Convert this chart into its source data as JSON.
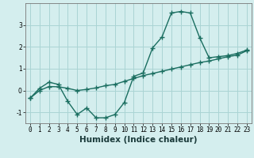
{
  "xlabel": "Humidex (Indice chaleur)",
  "ylabel": "",
  "bg_color": "#d4eeee",
  "grid_color": "#aad4d4",
  "line_color": "#1a6e60",
  "xlim": [
    -0.5,
    23.5
  ],
  "ylim": [
    -1.5,
    4.0
  ],
  "yticks": [
    -1,
    0,
    1,
    2,
    3
  ],
  "xticks": [
    0,
    1,
    2,
    3,
    4,
    5,
    6,
    7,
    8,
    9,
    10,
    11,
    12,
    13,
    14,
    15,
    16,
    17,
    18,
    19,
    20,
    21,
    22,
    23
  ],
  "curve1_x": [
    0,
    1,
    2,
    3,
    4,
    5,
    6,
    7,
    8,
    9,
    10,
    11,
    12,
    13,
    14,
    15,
    16,
    17,
    18,
    19,
    20,
    21,
    22,
    23
  ],
  "curve1_y": [
    -0.35,
    0.1,
    0.38,
    0.28,
    -0.5,
    -1.1,
    -0.8,
    -1.25,
    -1.25,
    -1.1,
    -0.55,
    0.65,
    0.8,
    1.95,
    2.45,
    3.55,
    3.62,
    3.55,
    2.42,
    1.5,
    1.55,
    1.6,
    1.7,
    1.85
  ],
  "curve2_x": [
    0,
    1,
    2,
    3,
    4,
    5,
    6,
    7,
    8,
    9,
    10,
    11,
    12,
    13,
    14,
    15,
    16,
    17,
    18,
    19,
    20,
    21,
    22,
    23
  ],
  "curve2_y": [
    -0.35,
    0.0,
    0.18,
    0.17,
    0.1,
    0.0,
    0.05,
    0.12,
    0.22,
    0.28,
    0.42,
    0.55,
    0.68,
    0.78,
    0.88,
    0.98,
    1.08,
    1.18,
    1.28,
    1.35,
    1.45,
    1.55,
    1.62,
    1.82
  ],
  "marker": "+",
  "markersize": 4,
  "linewidth": 1.0,
  "tick_fontsize": 5.5,
  "label_fontsize": 7.5
}
